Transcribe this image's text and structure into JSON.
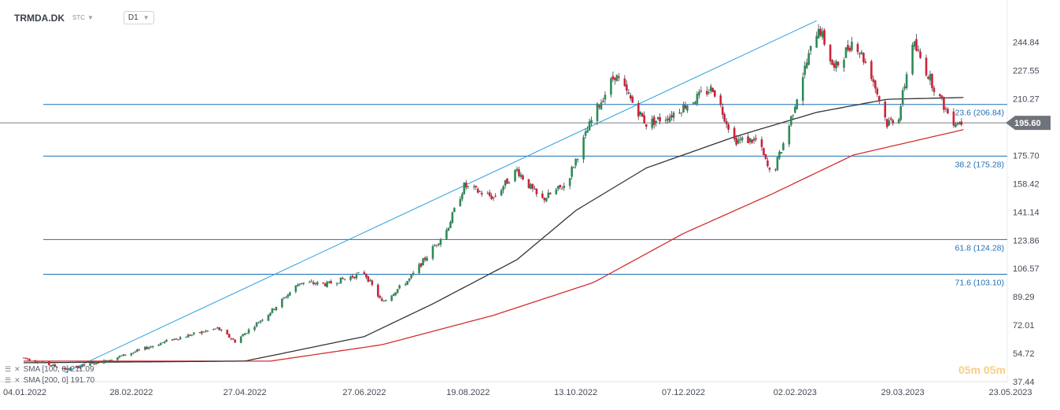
{
  "header": {
    "symbol": "TRMDA.DK",
    "market": "STC",
    "timeframe": "D1"
  },
  "indicators": [
    {
      "label": "SMA [100, 0] 211.09",
      "color": "#333333"
    },
    {
      "label": "SMA [200, 0] 191.70",
      "color": "#d32f2f"
    }
  ],
  "watermark": "05m 05m",
  "last_price": {
    "value": 195.6,
    "label": "195.60"
  },
  "chart_data": {
    "type": "candlestick",
    "ylim": [
      37.44,
      262
    ],
    "y_ticks": [
      244.84,
      227.55,
      210.27,
      192.99,
      175.7,
      158.42,
      141.14,
      123.86,
      106.57,
      89.29,
      72.01,
      54.72,
      37.44
    ],
    "y_tick_labels": [
      "244.84",
      "227.55",
      "210.27",
      "",
      "175.70",
      "158.42",
      "141.14",
      "123.86",
      "106.57",
      "89.29",
      "72.01",
      "54.72",
      "37.44"
    ],
    "x_ticks": [
      {
        "date": "2022-01-04",
        "label": "04.01.2022"
      },
      {
        "date": "2022-02-28",
        "label": "28.02.2022"
      },
      {
        "date": "2022-04-27",
        "label": "27.04.2022"
      },
      {
        "date": "2022-06-27",
        "label": "27.06.2022"
      },
      {
        "date": "2022-08-19",
        "label": "19.08.2022"
      },
      {
        "date": "2022-10-13",
        "label": "13.10.2022"
      },
      {
        "date": "2022-12-07",
        "label": "07.12.2022"
      },
      {
        "date": "2023-02-02",
        "label": "02.02.2023"
      },
      {
        "date": "2023-03-29",
        "label": "29.03.2023"
      },
      {
        "date": "2023-05-23",
        "label": "23.05.2023"
      }
    ],
    "colors": {
      "up": "#2e8b57",
      "down": "#d0213a",
      "fib": "#1f6fb5",
      "trend": "#2a9de0",
      "sma100": "#333333",
      "sma200": "#d32f2f",
      "last": "#666666"
    },
    "fib_levels": [
      {
        "label": "23.6 (206.84)",
        "value": 206.84
      },
      {
        "label": "38.2 (175.28)",
        "value": 175.28
      },
      {
        "label": "61.8 (124.28)",
        "value": 124.28
      },
      {
        "label": "71.6 (103.10)",
        "value": 103.1
      }
    ],
    "trendline": {
      "from": {
        "date": "2022-01-25",
        "value": 43
      },
      "to": {
        "date": "2023-02-13",
        "value": 258
      }
    },
    "price_path": [
      [
        "2022-01-04",
        52
      ],
      [
        "2022-01-26",
        45
      ],
      [
        "2022-02-14",
        50
      ],
      [
        "2022-02-28",
        55
      ],
      [
        "2022-03-20",
        63
      ],
      [
        "2022-04-13",
        70
      ],
      [
        "2022-04-22",
        62
      ],
      [
        "2022-05-10",
        80
      ],
      [
        "2022-05-25",
        98
      ],
      [
        "2022-06-08",
        97
      ],
      [
        "2022-06-27",
        104
      ],
      [
        "2022-07-06",
        86
      ],
      [
        "2022-07-20",
        100
      ],
      [
        "2022-08-08",
        130
      ],
      [
        "2022-08-17",
        157
      ],
      [
        "2022-09-01",
        150
      ],
      [
        "2022-09-13",
        167
      ],
      [
        "2022-09-25",
        148
      ],
      [
        "2022-10-08",
        158
      ],
      [
        "2022-10-22",
        200
      ],
      [
        "2022-11-02",
        225
      ],
      [
        "2022-11-18",
        195
      ],
      [
        "2022-11-30",
        200
      ],
      [
        "2022-12-10",
        208
      ],
      [
        "2022-12-22",
        217
      ],
      [
        "2023-01-02",
        185
      ],
      [
        "2023-01-14",
        185
      ],
      [
        "2023-01-21",
        162
      ],
      [
        "2023-01-29",
        190
      ],
      [
        "2023-02-06",
        225
      ],
      [
        "2023-02-14",
        255
      ],
      [
        "2023-02-22",
        228
      ],
      [
        "2023-03-04",
        247
      ],
      [
        "2023-03-13",
        225
      ],
      [
        "2023-03-21",
        195
      ],
      [
        "2023-03-27",
        200
      ],
      [
        "2023-04-03",
        245
      ],
      [
        "2023-04-15",
        215
      ],
      [
        "2023-04-23",
        197
      ],
      [
        "2023-04-30",
        195.6
      ]
    ],
    "sma100_path": [
      [
        "2022-01-04",
        49
      ],
      [
        "2022-04-27",
        50
      ],
      [
        "2022-06-27",
        65
      ],
      [
        "2022-08-01",
        85
      ],
      [
        "2022-09-13",
        112
      ],
      [
        "2022-10-13",
        142
      ],
      [
        "2022-11-18",
        168
      ],
      [
        "2023-01-02",
        187
      ],
      [
        "2023-02-13",
        202
      ],
      [
        "2023-03-21",
        210
      ],
      [
        "2023-04-30",
        211.09
      ]
    ],
    "sma200_path": [
      [
        "2022-01-04",
        50
      ],
      [
        "2022-05-10",
        50
      ],
      [
        "2022-07-06",
        60
      ],
      [
        "2022-09-01",
        78
      ],
      [
        "2022-10-22",
        98
      ],
      [
        "2022-12-07",
        128
      ],
      [
        "2023-01-21",
        152
      ],
      [
        "2023-03-04",
        176
      ],
      [
        "2023-04-30",
        191.7
      ]
    ]
  }
}
